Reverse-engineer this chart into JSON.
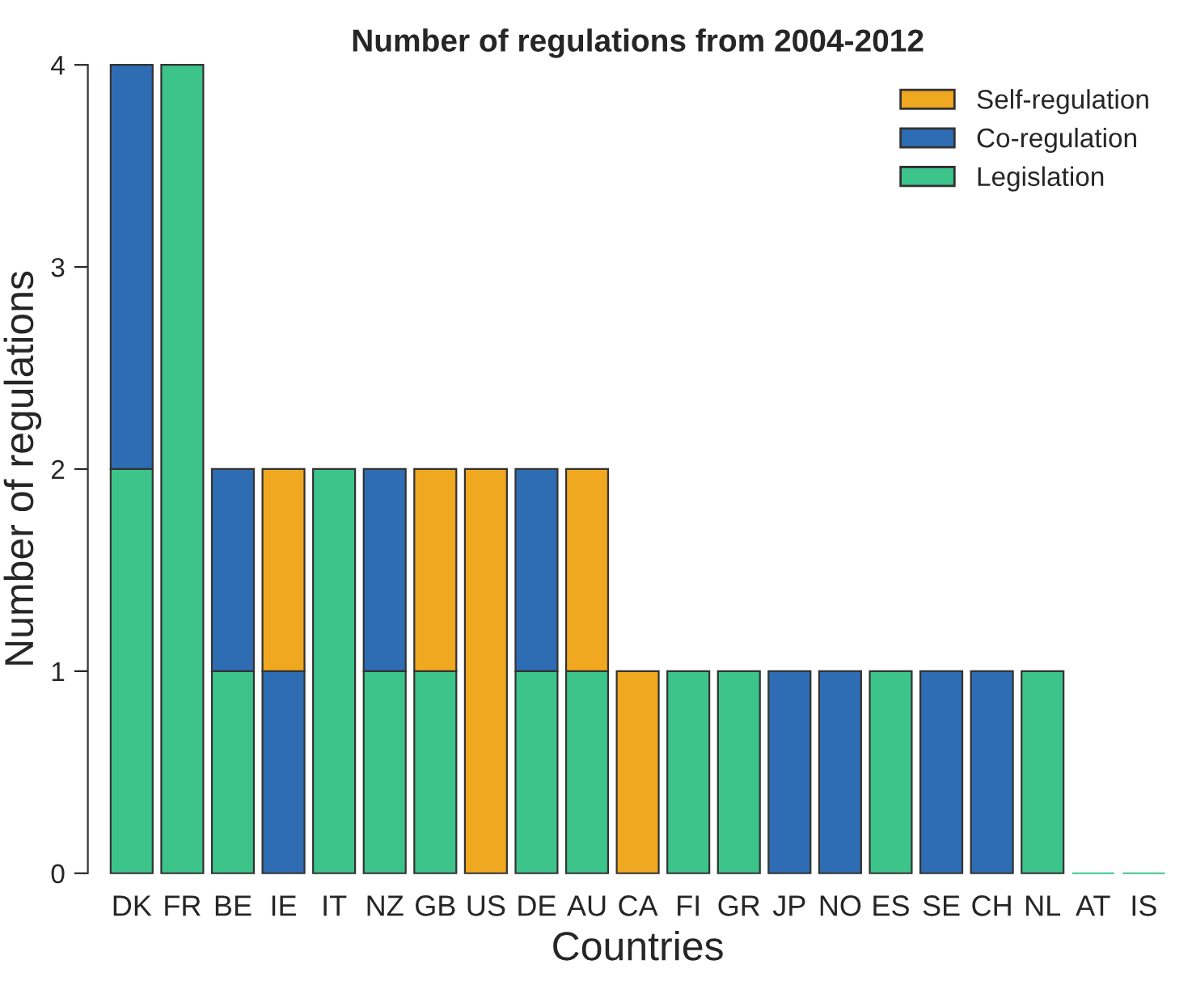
{
  "chart_data": {
    "type": "bar",
    "title": "Number of regulations from 2004-2012",
    "xlabel": "Countries",
    "ylabel": "Number of regulations",
    "categories": [
      "DK",
      "FR",
      "BE",
      "IE",
      "IT",
      "NZ",
      "GB",
      "US",
      "DE",
      "AU",
      "CA",
      "FI",
      "GR",
      "JP",
      "NO",
      "ES",
      "SE",
      "CH",
      "NL",
      "AT",
      "IS"
    ],
    "stacked": true,
    "series": [
      {
        "name": "Legislation",
        "color": "#3cc48a",
        "values": [
          2,
          4,
          1,
          0,
          2,
          1,
          1,
          0,
          1,
          1,
          0,
          1,
          1,
          0,
          0,
          1,
          0,
          0,
          1,
          0,
          0
        ]
      },
      {
        "name": "Co-regulation",
        "color": "#2e6db4",
        "values": [
          2,
          0,
          1,
          1,
          0,
          1,
          0,
          0,
          1,
          0,
          0,
          0,
          0,
          1,
          1,
          0,
          1,
          1,
          0,
          0,
          0
        ]
      },
      {
        "name": "Self-regulation",
        "color": "#f0a820",
        "values": [
          0,
          0,
          0,
          1,
          0,
          0,
          1,
          2,
          0,
          1,
          1,
          0,
          0,
          0,
          0,
          0,
          0,
          0,
          0,
          0,
          0
        ]
      }
    ],
    "ylim": [
      0,
      4
    ],
    "yticks": [
      0,
      1,
      2,
      3,
      4
    ],
    "grid": false,
    "legend": "top right"
  }
}
